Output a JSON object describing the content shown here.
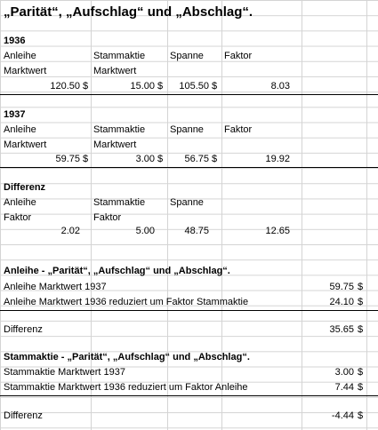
{
  "title": "„Parität“, „Aufschlag“ und „Abschlag“.",
  "currency": "$",
  "y1936": {
    "year": "1936",
    "h1a": "Anleihe",
    "h1b": "Marktwert",
    "h2a": "Stammaktie",
    "h2b": "Marktwert",
    "h3": "Spanne",
    "h4": "Faktor",
    "v1": "120.50",
    "v2": "15.00",
    "v3": "105.50",
    "v4": "8.03"
  },
  "y1937": {
    "year": "1937",
    "h1a": "Anleihe",
    "h1b": "Marktwert",
    "h2a": "Stammaktie",
    "h2b": "Marktwert",
    "h3": "Spanne",
    "h4": "Faktor",
    "v1": "59.75",
    "v2": "3.00",
    "v3": "56.75",
    "v4": "19.92"
  },
  "diff": {
    "heading": "Differenz",
    "h1a": "Anleihe",
    "h1b": "Faktor",
    "h2a": "Stammaktie",
    "h2b": "Faktor",
    "h3": "Spanne",
    "v1": "2.02",
    "v2": "5.00",
    "v3": "48.75",
    "v4": "12.65"
  },
  "anleihe": {
    "heading": "Anleihe - „Parität“, „Aufschlag“ und „Abschlag“.",
    "row1_label": "Anleihe Marktwert 1937",
    "row1_value": "59.75",
    "row2_label": "Anleihe Marktwert 1936 reduziert um Faktor Stammaktie",
    "row2_value": "24.10",
    "diff_label": "Differenz",
    "diff_value": "35.65"
  },
  "stamm": {
    "heading": "Stammaktie - „Parität“, „Aufschlag“ und „Abschlag“.",
    "row1_label": "Stammaktie Marktwert 1937",
    "row1_value": "3.00",
    "row2_label": "Stammaktie Marktwert 1936 reduziert um Faktor Anleihe",
    "row2_value": "7.44",
    "diff_label": "Differenz",
    "diff_value": "-4.44"
  }
}
